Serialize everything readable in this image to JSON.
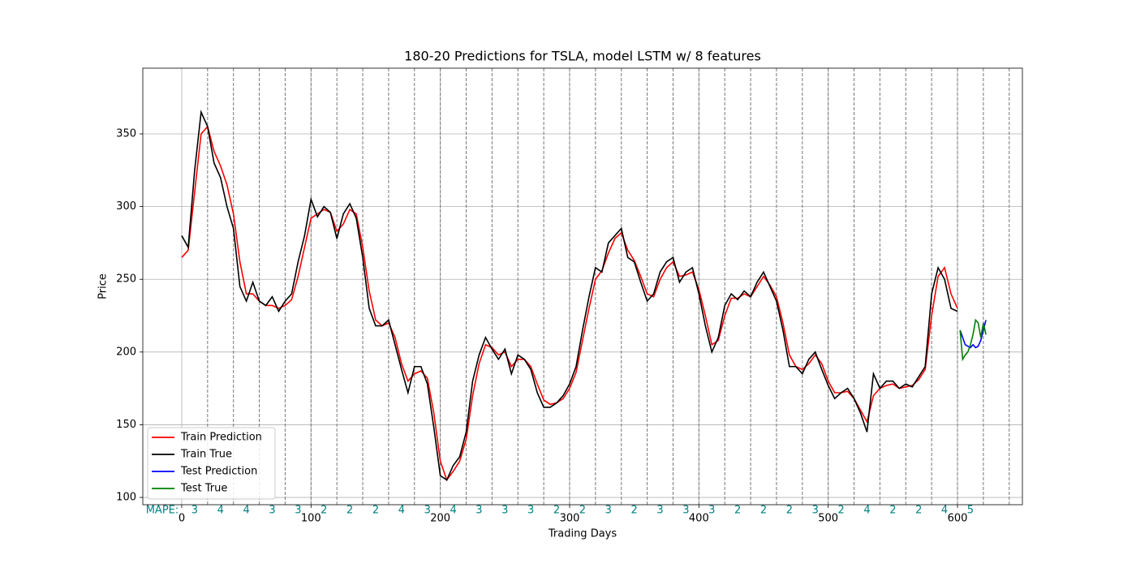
{
  "chart_data": {
    "type": "line",
    "title": "180-20 Predictions for TSLA, model LSTM w/ 8 features",
    "x_label": "Trading Days",
    "y_label": "Price",
    "xlim": [
      -30.1,
      650.2
    ],
    "ylim": [
      95,
      395.2
    ],
    "xticks": [
      0,
      100,
      200,
      300,
      400,
      500,
      600
    ],
    "yticks": [
      100,
      150,
      200,
      250,
      300,
      350
    ],
    "grid": true,
    "legend": "lower left",
    "window_edges": [
      20,
      40,
      60,
      80,
      100,
      120,
      140,
      160,
      180,
      200,
      220,
      240,
      260,
      280,
      300,
      320,
      340,
      360,
      380,
      400,
      420,
      440,
      460,
      480,
      500,
      520,
      540,
      560,
      580,
      600,
      620,
      640
    ],
    "mape": {
      "label": "MAPE:",
      "color": "#008080",
      "values": [
        3,
        4,
        4,
        3,
        3,
        2,
        2,
        2,
        4,
        3,
        4,
        3,
        3,
        3,
        2,
        2,
        3,
        2,
        3,
        3,
        3,
        2,
        2,
        2,
        3,
        2,
        4,
        2,
        2,
        4,
        5
      ]
    },
    "series": [
      {
        "name": "Train Prediction",
        "color": "#ff0000",
        "x": [
          0,
          5,
          10,
          15,
          20,
          25,
          30,
          35,
          40,
          45,
          50,
          55,
          60,
          65,
          70,
          75,
          80,
          85,
          90,
          95,
          100,
          105,
          110,
          115,
          120,
          125,
          130,
          135,
          140,
          145,
          150,
          155,
          160,
          165,
          170,
          175,
          180,
          185,
          190,
          195,
          200,
          205,
          210,
          215,
          220,
          225,
          230,
          235,
          240,
          245,
          250,
          255,
          260,
          265,
          270,
          275,
          280,
          285,
          290,
          295,
          300,
          305,
          310,
          315,
          320,
          325,
          330,
          335,
          340,
          345,
          350,
          355,
          360,
          365,
          370,
          375,
          380,
          385,
          390,
          395,
          400,
          405,
          410,
          415,
          420,
          425,
          430,
          435,
          440,
          445,
          450,
          455,
          460,
          465,
          470,
          475,
          480,
          485,
          490,
          495,
          500,
          505,
          510,
          515,
          520,
          525,
          530,
          535,
          540,
          545,
          550,
          555,
          560,
          565,
          570,
          575,
          580,
          585,
          590,
          595,
          600
        ],
        "values": [
          265,
          270,
          310,
          350,
          355,
          338,
          328,
          315,
          295,
          262,
          240,
          240,
          235,
          232,
          232,
          230,
          232,
          236,
          252,
          272,
          292,
          295,
          298,
          296,
          283,
          288,
          298,
          295,
          272,
          242,
          222,
          218,
          220,
          210,
          192,
          180,
          185,
          187,
          182,
          158,
          125,
          112,
          118,
          125,
          140,
          170,
          192,
          205,
          203,
          198,
          200,
          190,
          195,
          195,
          190,
          178,
          167,
          164,
          165,
          168,
          175,
          186,
          208,
          230,
          250,
          256,
          268,
          278,
          282,
          270,
          263,
          252,
          240,
          238,
          250,
          258,
          262,
          252,
          253,
          255,
          243,
          225,
          205,
          208,
          225,
          237,
          237,
          240,
          238,
          245,
          252,
          246,
          238,
          220,
          198,
          190,
          188,
          192,
          198,
          192,
          180,
          172,
          172,
          173,
          168,
          160,
          152,
          170,
          175,
          177,
          178,
          175,
          176,
          177,
          181,
          188,
          225,
          252,
          258,
          240,
          230
        ]
      },
      {
        "name": "Train True",
        "color": "#000000",
        "x": [
          0,
          5,
          10,
          15,
          20,
          25,
          30,
          35,
          40,
          45,
          50,
          55,
          60,
          65,
          70,
          75,
          80,
          85,
          90,
          95,
          100,
          105,
          110,
          115,
          120,
          125,
          130,
          135,
          140,
          145,
          150,
          155,
          160,
          165,
          170,
          175,
          180,
          185,
          190,
          195,
          200,
          205,
          210,
          215,
          220,
          225,
          230,
          235,
          240,
          245,
          250,
          255,
          260,
          265,
          270,
          275,
          280,
          285,
          290,
          295,
          300,
          305,
          310,
          315,
          320,
          325,
          330,
          335,
          340,
          345,
          350,
          355,
          360,
          365,
          370,
          375,
          380,
          385,
          390,
          395,
          400,
          405,
          410,
          415,
          420,
          425,
          430,
          435,
          440,
          445,
          450,
          455,
          460,
          465,
          470,
          475,
          480,
          485,
          490,
          495,
          500,
          505,
          510,
          515,
          520,
          525,
          530,
          535,
          540,
          545,
          550,
          555,
          560,
          565,
          570,
          575,
          580,
          585,
          590,
          595,
          600
        ],
        "values": [
          280,
          272,
          325,
          365,
          355,
          330,
          320,
          300,
          285,
          245,
          235,
          248,
          235,
          232,
          238,
          228,
          235,
          240,
          262,
          280,
          305,
          293,
          300,
          296,
          278,
          295,
          302,
          292,
          265,
          230,
          218,
          218,
          222,
          205,
          188,
          172,
          190,
          190,
          178,
          148,
          115,
          112,
          122,
          128,
          145,
          180,
          198,
          210,
          202,
          195,
          202,
          185,
          198,
          195,
          188,
          172,
          162,
          162,
          165,
          170,
          178,
          190,
          215,
          238,
          258,
          255,
          275,
          280,
          285,
          265,
          262,
          248,
          235,
          240,
          255,
          262,
          265,
          248,
          255,
          258,
          240,
          218,
          200,
          210,
          232,
          240,
          236,
          242,
          238,
          248,
          255,
          245,
          235,
          215,
          190,
          190,
          185,
          195,
          200,
          188,
          177,
          168,
          172,
          175,
          168,
          158,
          145,
          185,
          175,
          180,
          180,
          175,
          178,
          176,
          183,
          190,
          240,
          258,
          250,
          230,
          228
        ]
      },
      {
        "name": "Test Prediction",
        "color": "#0000ff",
        "x": [
          602,
          604,
          606,
          608,
          610,
          612,
          614,
          616,
          618,
          620,
          622
        ],
        "values": [
          215,
          210,
          205,
          204,
          203,
          205,
          203,
          204,
          208,
          215,
          222
        ]
      },
      {
        "name": "Test True",
        "color": "#008000",
        "x": [
          602,
          604,
          606,
          608,
          610,
          612,
          614,
          616,
          618,
          620,
          622
        ],
        "values": [
          215,
          195,
          198,
          200,
          205,
          212,
          222,
          220,
          210,
          220,
          212
        ]
      }
    ]
  }
}
